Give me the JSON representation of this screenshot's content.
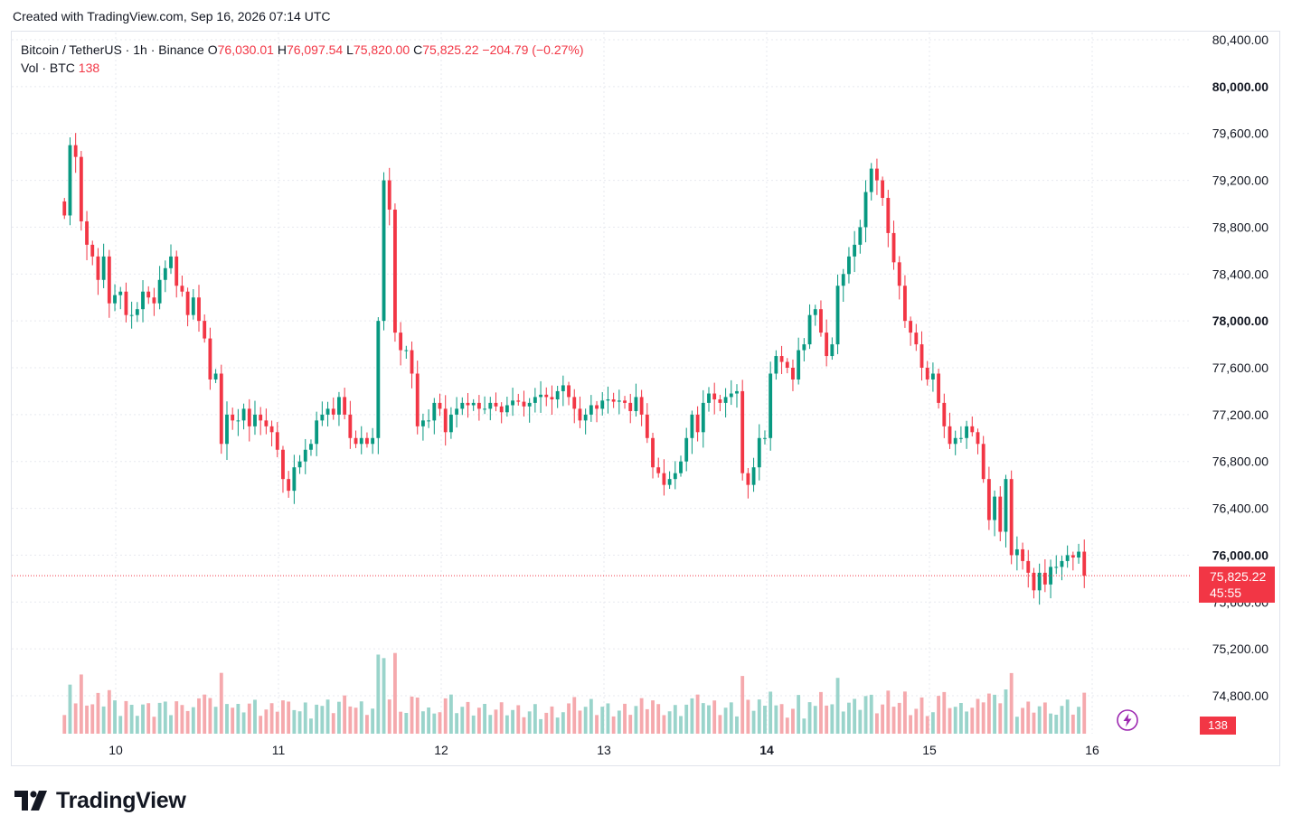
{
  "header": {
    "created_text": "Created with TradingView.com, Sep 16, 2026 07:14 UTC"
  },
  "legend": {
    "symbol": "Bitcoin / TetherUS · 1h · Binance",
    "o_label": "O",
    "o_value": "76,030.01",
    "h_label": "H",
    "h_value": "76,097.54",
    "l_label": "L",
    "l_value": "75,820.00",
    "c_label": "C",
    "c_value": "75,825.22",
    "change": "−204.79 (−0.27%)",
    "vol_label": "Vol · BTC",
    "vol_value": "138"
  },
  "price_tag": {
    "price": "75,825.22",
    "countdown": "45:55"
  },
  "volume_tag": "138",
  "branding": {
    "logo_text": "TradingView"
  },
  "colors": {
    "up": "#089981",
    "down": "#f23645",
    "up_vol": "#9ad4cb",
    "down_vol": "#f5a9ad",
    "grid": "#e7e9ef"
  },
  "chart_data": {
    "type": "candlestick",
    "title": "Bitcoin / TetherUS · 1h · Binance",
    "y_axis": {
      "side": "right",
      "ticks": [
        74800,
        75200,
        75600,
        76000,
        76400,
        76800,
        77200,
        77600,
        78000,
        78400,
        78800,
        79200,
        79600,
        80000,
        80400
      ],
      "tick_labels": [
        "74,800.00",
        "75,200.00",
        "75,600.00",
        "76,000.00",
        "76,400.00",
        "76,800.00",
        "77,200.00",
        "77,600.00",
        "78,000.00",
        "78,400.00",
        "78,800.00",
        "79,200.00",
        "79,600.00",
        "80,000.00",
        "80,400.00"
      ],
      "bold_ticks": [
        76000,
        78000,
        80000
      ]
    },
    "x_axis": {
      "ticks": [
        "10",
        "11",
        "12",
        "13",
        "14",
        "15",
        "16"
      ],
      "bold_ticks": [
        "14"
      ],
      "bars_per_day": 24
    },
    "last_price": 75825.22,
    "gap_after_last_bar": 18,
    "start_offset_bars": 9.4,
    "closes": [
      78900,
      79500,
      79400,
      78850,
      78650,
      78550,
      78350,
      78550,
      78150,
      78220,
      78250,
      78050,
      78050,
      78100,
      78250,
      78200,
      78150,
      78350,
      78450,
      78550,
      78300,
      78250,
      78050,
      78200,
      78000,
      77850,
      77500,
      77550,
      76950,
      77200,
      77150,
      77150,
      77250,
      77100,
      77200,
      77150,
      77100,
      77050,
      76900,
      76650,
      76550,
      76750,
      76800,
      76900,
      76950,
      77150,
      77200,
      77250,
      77200,
      77350,
      77200,
      77000,
      76950,
      77000,
      76950,
      77000,
      78000,
      79200,
      78950,
      77900,
      77750,
      77750,
      77550,
      77100,
      77150,
      77150,
      77300,
      77250,
      77050,
      77200,
      77250,
      77300,
      77280,
      77300,
      77250,
      77250,
      77300,
      77270,
      77220,
      77280,
      77320,
      77310,
      77270,
      77300,
      77350,
      77370,
      77350,
      77330,
      77400,
      77450,
      77350,
      77250,
      77150,
      77200,
      77280,
      77250,
      77320,
      77330,
      77310,
      77320,
      77300,
      77230,
      77350,
      77200,
      77000,
      76750,
      76700,
      76600,
      76650,
      76700,
      76800,
      77000,
      77200,
      77050,
      77300,
      77380,
      77330,
      77300,
      77350,
      77380,
      77400,
      76700,
      76600,
      76750,
      77000,
      77000,
      77550,
      77700,
      77650,
      77600,
      77500,
      77750,
      77800,
      78050,
      78100,
      77900,
      77700,
      77800,
      78300,
      78400,
      78550,
      78650,
      78800,
      79100,
      79300,
      79200,
      79050,
      78750,
      78500,
      78300,
      78000,
      77900,
      77800,
      77600,
      77500,
      77550,
      77300,
      77100,
      76950,
      77000,
      77000,
      77100,
      77050,
      76950,
      76650,
      76300,
      76500,
      76200,
      76650,
      76000,
      76050,
      75950,
      75850,
      75700,
      75850,
      75750,
      75900,
      75900,
      75950,
      76000,
      75980,
      76030,
      75825
    ]
  }
}
